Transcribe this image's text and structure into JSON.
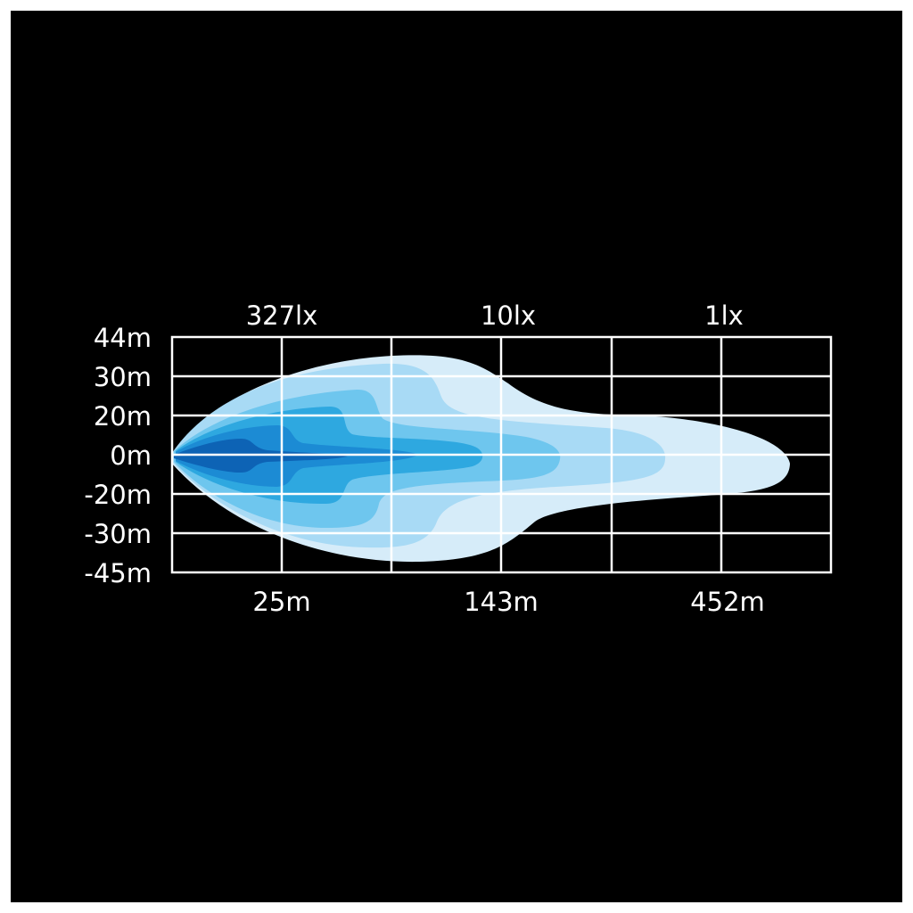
{
  "chart_data": {
    "type": "beam-pattern",
    "title": "",
    "y_tick_labels": [
      "44m",
      "30m",
      "20m",
      "0m",
      "-20m",
      "-30m",
      "-45m"
    ],
    "x_distance_labels": [
      "25m",
      "143m",
      "452m"
    ],
    "lux_labels": [
      "327lx",
      "10lx",
      "1lx"
    ],
    "grid": true,
    "layer_colors": [
      "#d6ecf9",
      "#a8daf5",
      "#6ec6ee",
      "#2ea8e0",
      "#1c8bd4",
      "#0d63b5"
    ]
  }
}
